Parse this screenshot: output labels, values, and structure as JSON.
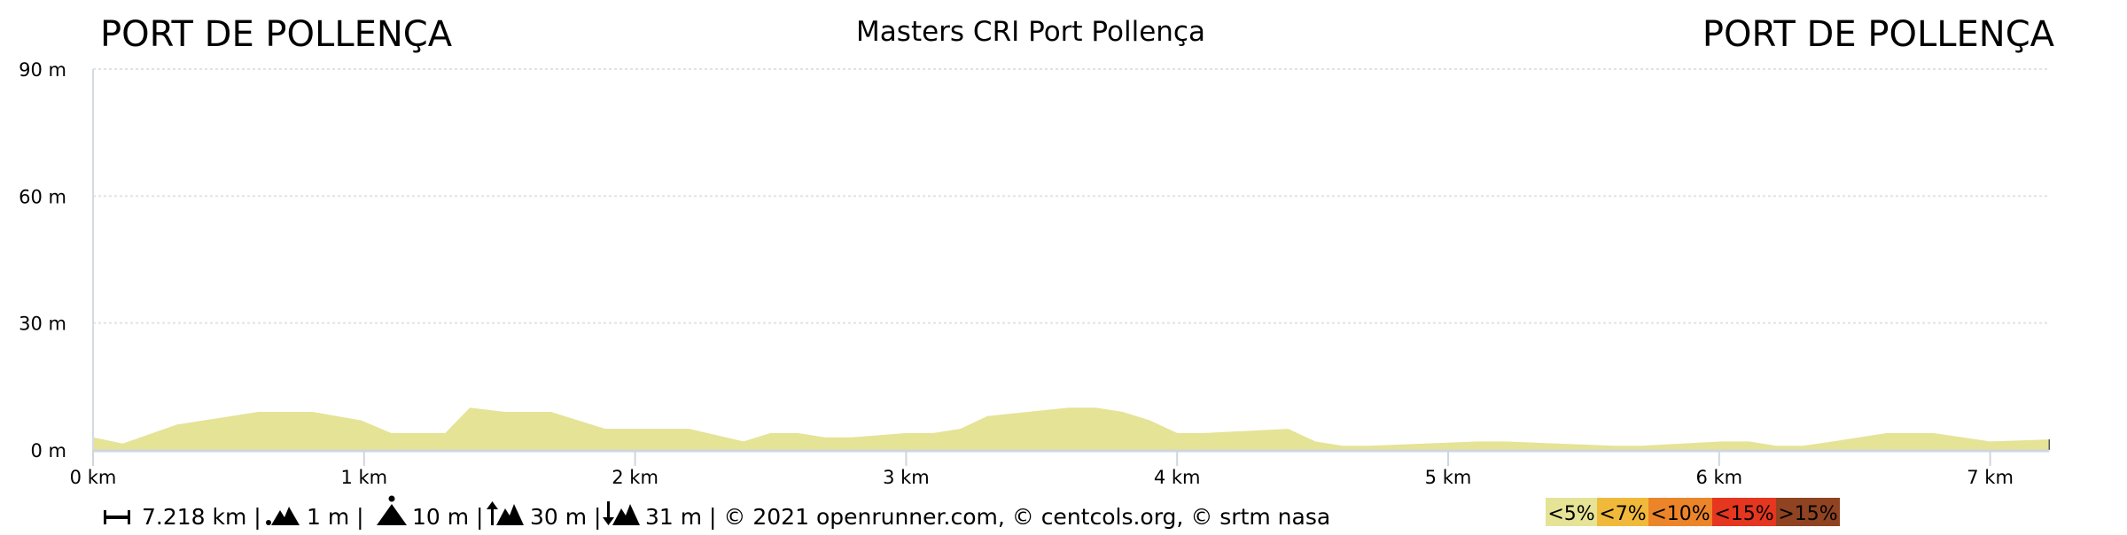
{
  "header": {
    "start_label": "PORT DE POLLENÇA",
    "title": "Masters CRI Port Pollença",
    "end_label": "PORT DE POLLENÇA"
  },
  "footer": {
    "distance": "7.218 km |",
    "min_alt": "1 m |",
    "max_alt": "10 m |",
    "ascent": "30 m |",
    "descent": "31 m | © 2021 openrunner.com, © centcols.org, © srtm nasa"
  },
  "legend": [
    {
      "label": "<5%",
      "color": "#e5e396"
    },
    {
      "label": "<7%",
      "color": "#f1b93b"
    },
    {
      "label": "<10%",
      "color": "#ec8529"
    },
    {
      "label": "<15%",
      "color": "#e5361f"
    },
    {
      "label": ">15%",
      "color": "#8f4321"
    }
  ],
  "chart_data": {
    "type": "area",
    "xlabel": "",
    "ylabel": "",
    "xlim": [
      0,
      7.218
    ],
    "ylim": [
      0,
      90
    ],
    "x_ticks": [
      "0 km",
      "1 km",
      "2 km",
      "3 km",
      "4 km",
      "5 km",
      "6 km",
      "7 km"
    ],
    "y_ticks": [
      "0 m",
      "30 m",
      "60 m",
      "90 m"
    ],
    "grid": true,
    "fill_color": "#e5e396",
    "x": [
      0,
      0.11,
      0.31,
      0.61,
      0.81,
      0.99,
      1.1,
      1.3,
      1.39,
      1.52,
      1.69,
      1.79,
      1.89,
      2.2,
      2.4,
      2.5,
      2.6,
      2.7,
      2.8,
      3.0,
      3.1,
      3.2,
      3.3,
      3.6,
      3.7,
      3.8,
      3.9,
      4.0,
      4.1,
      4.41,
      4.51,
      4.61,
      4.71,
      5.11,
      5.21,
      5.61,
      5.71,
      6.01,
      6.11,
      6.21,
      6.31,
      6.42,
      6.62,
      6.79,
      7.0,
      7.218
    ],
    "y": [
      3,
      1.5,
      6,
      9,
      9,
      7,
      4,
      4,
      10,
      9,
      9,
      7,
      5,
      5,
      2,
      4,
      4,
      3,
      3,
      4,
      4,
      5,
      8,
      10,
      10,
      9,
      7,
      4,
      4,
      5,
      2,
      1,
      1,
      2,
      2,
      1,
      1,
      2,
      2,
      1,
      1,
      2,
      4,
      4,
      2,
      2.5
    ]
  }
}
